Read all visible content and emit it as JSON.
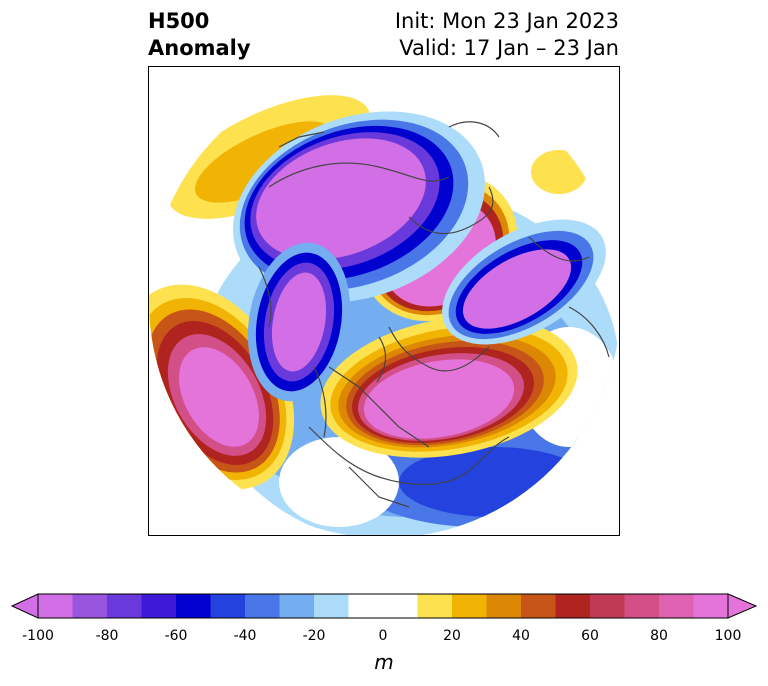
{
  "title": {
    "left_line1": "H500",
    "left_line2": "Anomaly",
    "right_line1": "Init: Mon 23 Jan 2023",
    "right_line2": "Valid: 17 Jan – 23 Jan"
  },
  "colorbar": {
    "unit": "m",
    "ticks": [
      "-100",
      "-80",
      "-60",
      "-40",
      "-20",
      "0",
      "20",
      "40",
      "60",
      "80",
      "100"
    ],
    "min": -100,
    "max": 100,
    "step": 10,
    "colors": [
      "#d26fe6",
      "#9a55df",
      "#6a39db",
      "#3d18d7",
      "#0000cf",
      "#2342de",
      "#4a77e8",
      "#74aef1",
      "#acdcf9",
      "#ffffff",
      "#ffffff",
      "#fde14e",
      "#f2b404",
      "#dd8805",
      "#c75517",
      "#b02420",
      "#c03a56",
      "#d34f88",
      "#dd62b1",
      "#e574da"
    ],
    "extend": "both"
  },
  "legend_colors": {
    "neg_strong": "#e274e3",
    "neg_mid": "#0000cf",
    "neg_light": "#acdcf9",
    "pos_light": "#fde14e",
    "pos_mid": "#dd8805",
    "pos_strong": "#e574da",
    "land_lines": "#444444"
  }
}
